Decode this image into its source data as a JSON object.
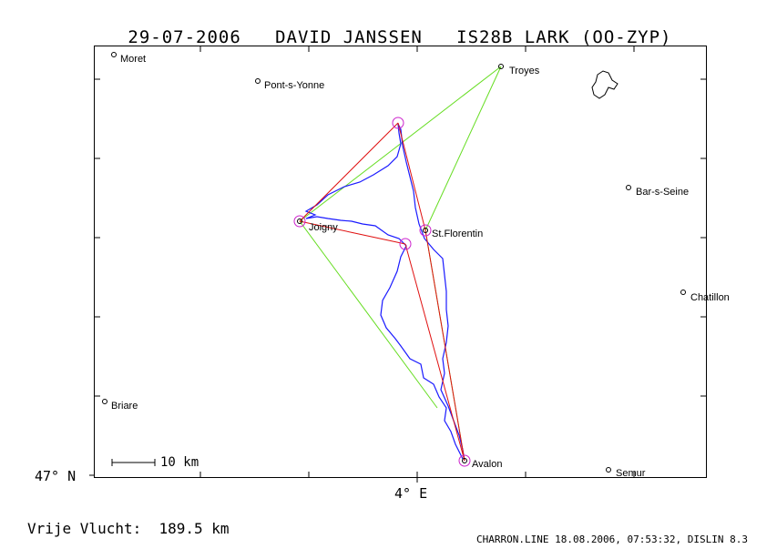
{
  "header": {
    "date": "29-07-2006",
    "pilot": "DAVID JANSSEN",
    "glider": "IS28B LARK (OO-ZYP)"
  },
  "axes": {
    "lat_label": "47° N",
    "lon_label": "4° E"
  },
  "scale_bar": {
    "label": "10 km"
  },
  "summary": {
    "label": "Vrije Vlucht:",
    "value": "189.5 km"
  },
  "footer": "CHARRON.LINE 18.08.2006, 07:53:32, DISLIN 8.3",
  "colors": {
    "track": "#1a1aff",
    "task_red": "#e01010",
    "task_green": "#66dd22",
    "turnpoint": "#cc22cc"
  },
  "towns": [
    {
      "name": "Moret"
    },
    {
      "name": "Pont-s-Yonne"
    },
    {
      "name": "Troyes"
    },
    {
      "name": "Bar-s-Seine"
    },
    {
      "name": "Joigny"
    },
    {
      "name": "St.Florentin"
    },
    {
      "name": "Chatillon"
    },
    {
      "name": "Briare"
    },
    {
      "name": "Avalon"
    },
    {
      "name": "Semur"
    }
  ]
}
